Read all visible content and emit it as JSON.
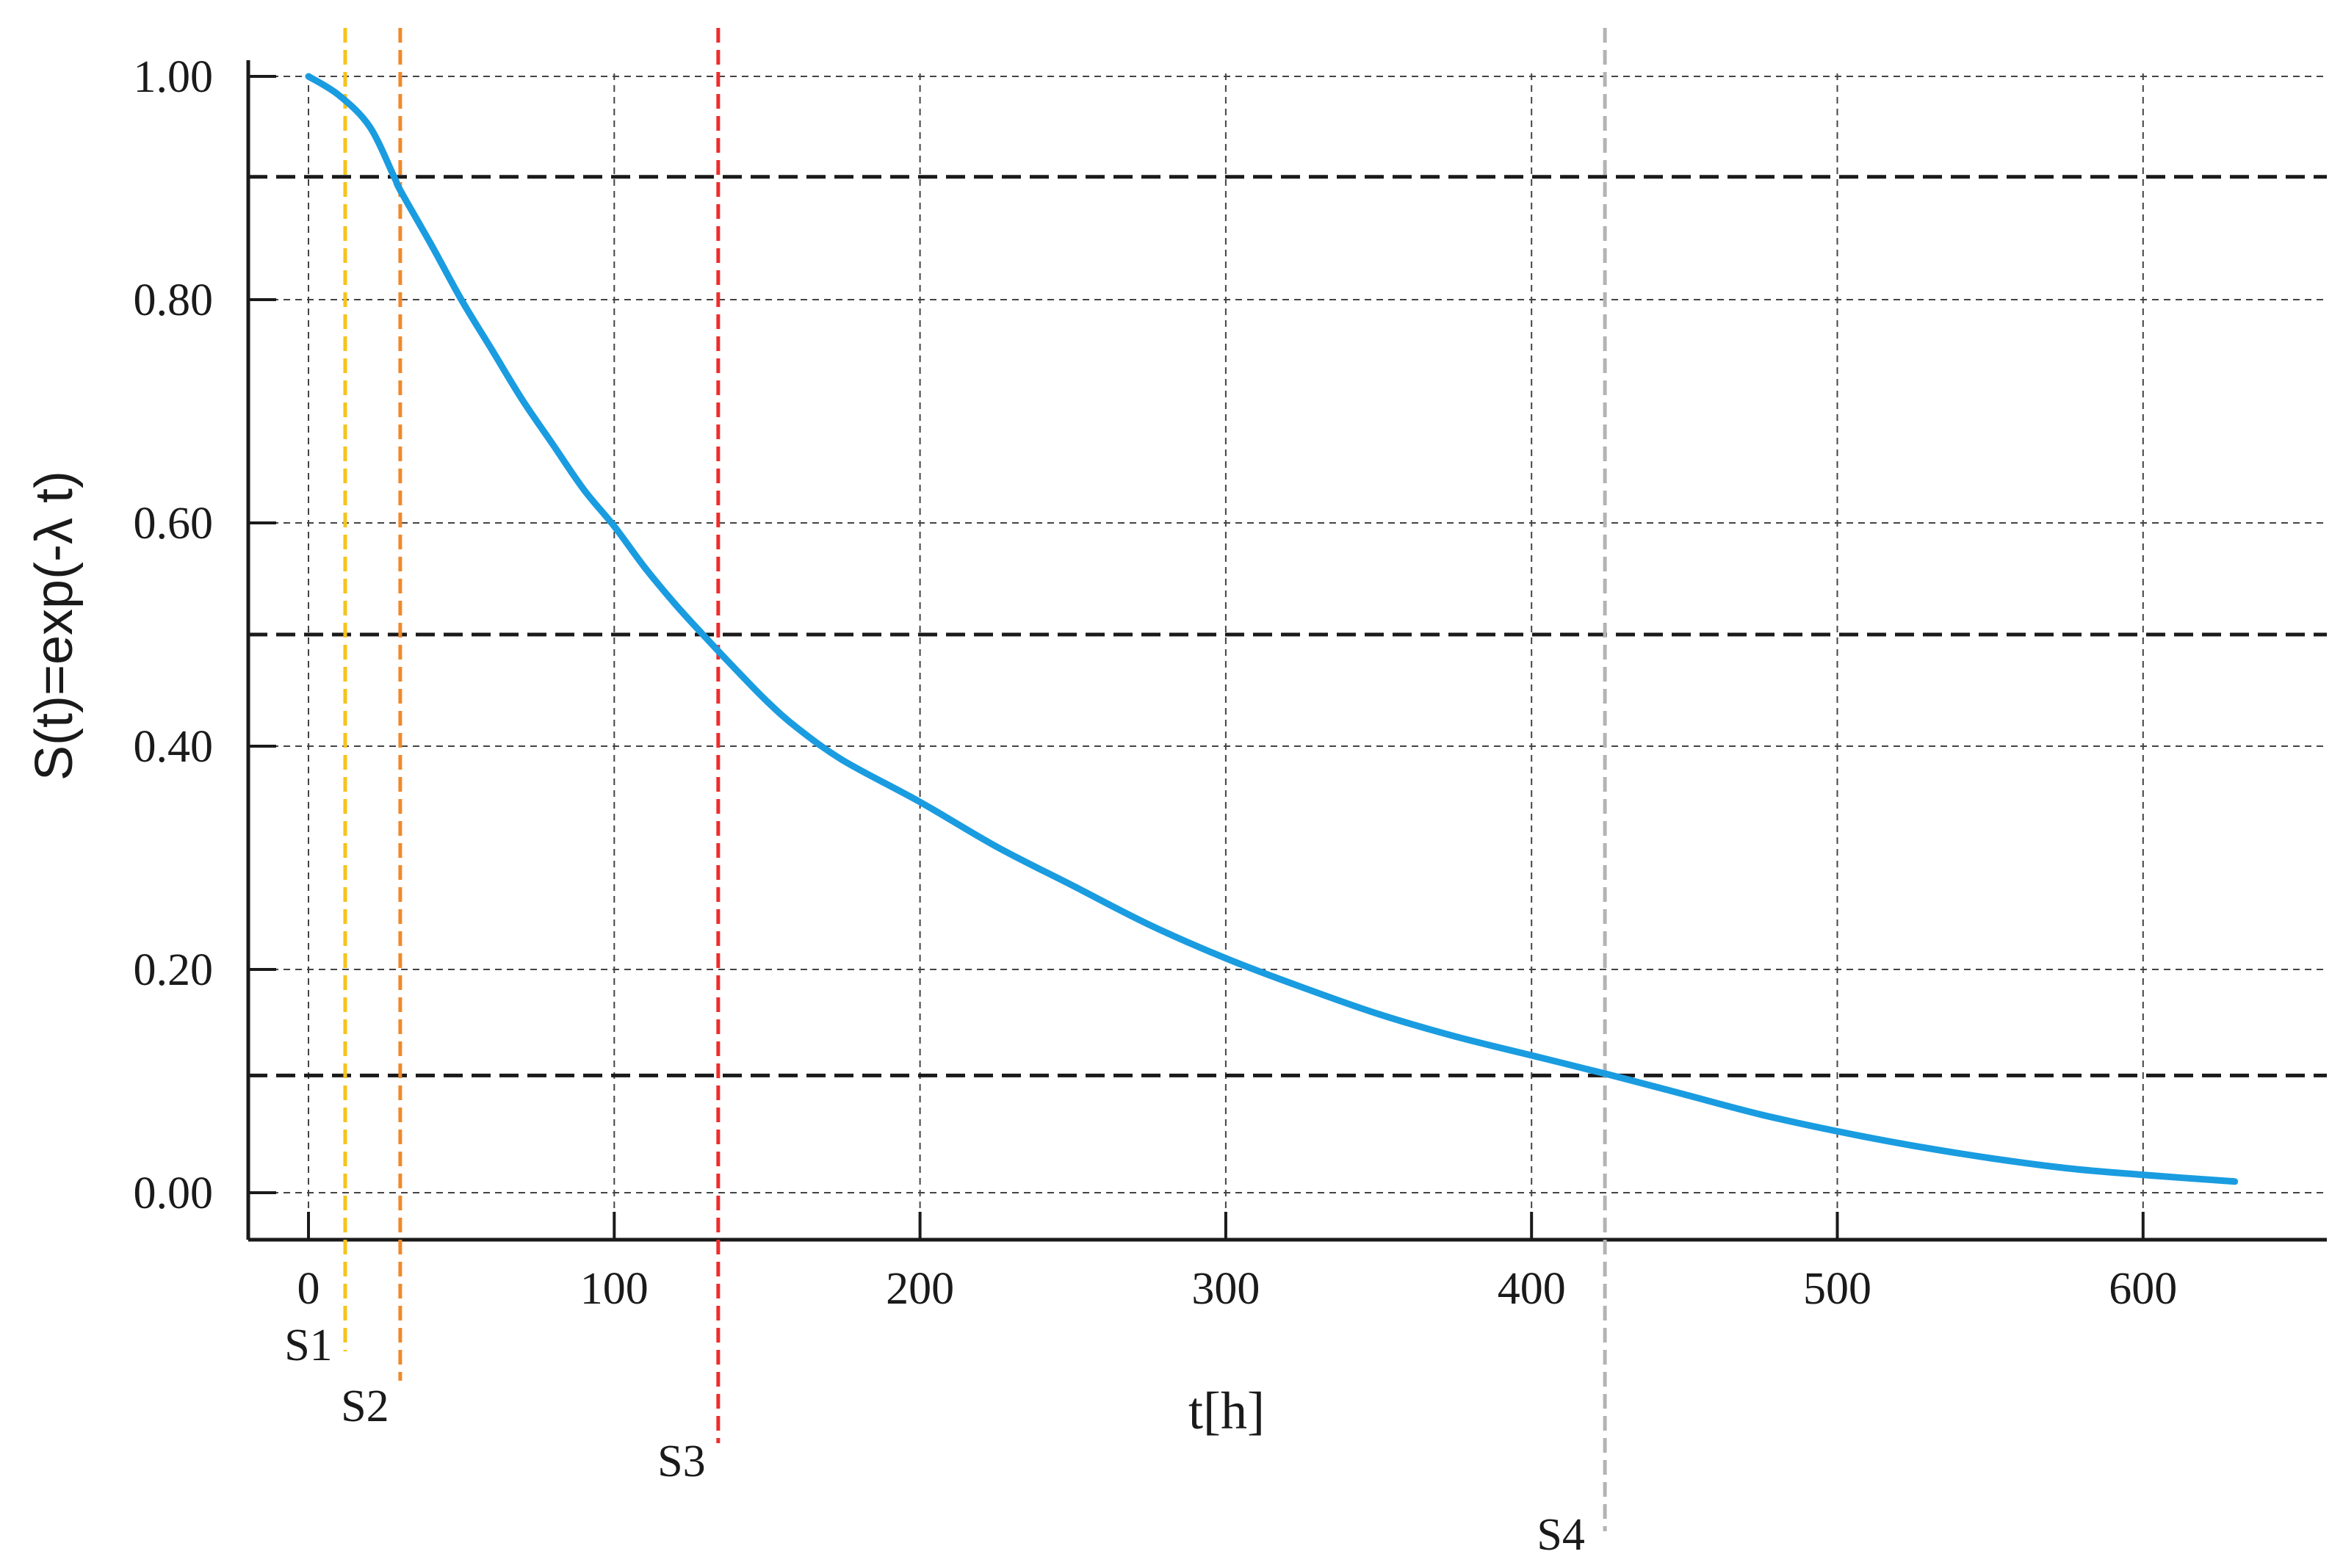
{
  "chart_data": {
    "type": "line",
    "xlabel": "t[h]",
    "ylabel": "S(t)=exp(-λ t)",
    "xlim": [
      -20,
      660
    ],
    "ylim": [
      -0.04,
      1.02
    ],
    "x_ticks": [
      "0",
      "100",
      "200",
      "300",
      "400",
      "500",
      "600"
    ],
    "y_ticks": [
      "0.00",
      "0.20",
      "0.40",
      "0.60",
      "0.80",
      "1.00"
    ],
    "grid": true,
    "x": [
      0,
      10,
      20,
      28,
      30,
      40,
      50,
      60,
      70,
      80,
      90,
      100,
      110,
      120,
      130,
      140,
      150,
      160,
      175,
      200,
      225,
      250,
      275,
      300,
      325,
      350,
      375,
      400,
      425,
      450,
      475,
      500,
      525,
      550,
      575,
      600,
      630
    ],
    "y": [
      1.0,
      0.983,
      0.955,
      0.91,
      0.898,
      0.85,
      0.8,
      0.755,
      0.71,
      0.67,
      0.63,
      0.597,
      0.56,
      0.527,
      0.497,
      0.468,
      0.44,
      0.416,
      0.387,
      0.35,
      0.31,
      0.275,
      0.24,
      0.21,
      0.184,
      0.16,
      0.14,
      0.123,
      0.106,
      0.088,
      0.07,
      0.055,
      0.042,
      0.031,
      0.022,
      0.016,
      0.01
    ],
    "series_color": "#1a9ce0",
    "reference_lines_y": [
      0.91,
      0.5,
      0.105
    ],
    "markers": [
      {
        "label": "S1",
        "x": 12,
        "color": "#f5c31a"
      },
      {
        "label": "S2",
        "x": 30,
        "color": "#f0892a"
      },
      {
        "label": "S3",
        "x": 134,
        "color": "#ee2c2c"
      },
      {
        "label": "S4",
        "x": 424,
        "color": "#b3b3b3"
      }
    ]
  }
}
